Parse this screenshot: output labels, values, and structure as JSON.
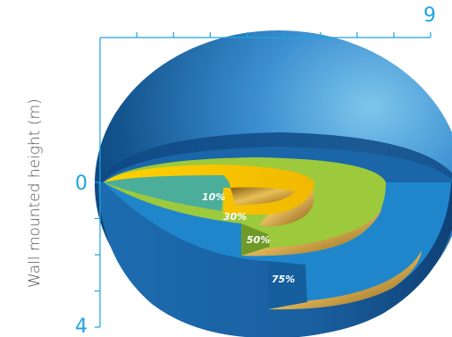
{
  "axis": {
    "x_max_label": "9",
    "y_zero_label": "0",
    "y_max_label": "4",
    "y_title": "Wall mounted height (m)",
    "x_ticks": 9,
    "y_ticks": 4
  },
  "zones": {
    "z10": "10%",
    "z30": "30%",
    "z50": "50%",
    "z75": "75%"
  },
  "colors": {
    "axis": "#1fa3e0",
    "sphere_dark": "#0a3f78",
    "sphere_mid": "#1a66a8",
    "zone_75": "#1f86cc",
    "zone_50": "#9dc93c",
    "zone_30": "#f4c400",
    "zone_10": "#4aae9a",
    "gold": "#c8962a"
  }
}
